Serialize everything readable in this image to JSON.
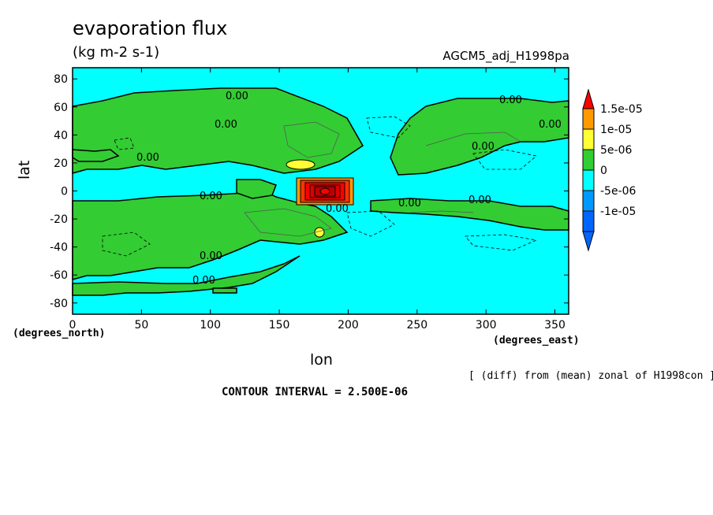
{
  "chart_data": {
    "type": "heatmap",
    "title": "evaporation flux",
    "units": "(kg m-2 s-1)",
    "run_name": "AGCM5_adj_H1998pa",
    "xlabel": "lon",
    "ylabel": "lat",
    "x_unit_label": "(degrees_east)",
    "y_unit_label": "(degrees_north)",
    "xlim": [
      0,
      360
    ],
    "ylim": [
      -88,
      88
    ],
    "x_ticks": [
      0,
      50,
      100,
      150,
      200,
      250,
      300,
      350
    ],
    "y_ticks": [
      80,
      60,
      40,
      20,
      0,
      -20,
      -40,
      -60,
      -80
    ],
    "x_tick_labels": [
      "0",
      "50",
      "100",
      "150",
      "200",
      "250",
      "300",
      "350"
    ],
    "y_tick_labels": [
      "80",
      "60",
      "40",
      "20",
      "0",
      "-20",
      "-40",
      "-60",
      "-80"
    ],
    "colorbar": {
      "levels": [
        {
          "label": "1.5e-05",
          "color": "#ff9900"
        },
        {
          "label": "1e-05",
          "color": "#ffff33"
        },
        {
          "label": "5e-06",
          "color": "#33cc33"
        },
        {
          "label": "0",
          "color": "#00ffff"
        },
        {
          "label": "-5e-06",
          "color": "#0099ff"
        },
        {
          "label": "-1e-05",
          "color": "#0066ff"
        }
      ],
      "top_arrow_color": "#ff0000",
      "bottom_arrow_color": "#0066ff"
    },
    "contour_labels": [
      "0.00",
      "0.00",
      "0.00",
      "0.00",
      "0.00",
      "0.00",
      "0.00",
      "0.00",
      "0.00",
      "0.00",
      "0.00",
      "0.00"
    ],
    "contour_interval": "CONTOUR INTERVAL = 2.500E-06",
    "note": "[ (diff) from (mean) zonal of H1998con ]",
    "peak": {
      "lon": 180,
      "lat": 0,
      "description": "strong positive maximum"
    }
  }
}
